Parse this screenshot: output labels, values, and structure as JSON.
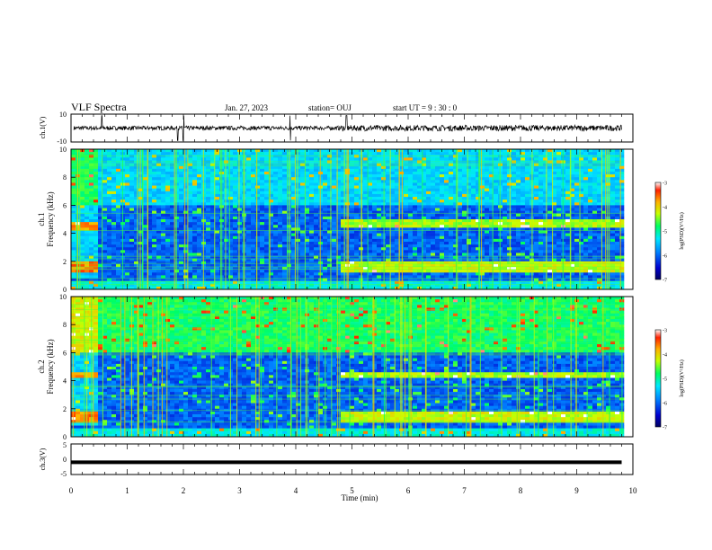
{
  "header": {
    "title": "VLF Spectra",
    "date": "Jan. 27, 2023",
    "station": "station= OUJ",
    "start": "start  UT =   9  : 30 : 0"
  },
  "chart_data": [
    {
      "type": "line",
      "panel": "ch1-waveform",
      "ylabel": "ch.1(V)",
      "xlim": [
        0,
        10
      ],
      "ylim": [
        -10,
        10
      ],
      "ytick_labels": [
        "10",
        "-10"
      ],
      "description_values": {
        "baseline": 0,
        "typical_amplitude": 1.5,
        "spike_times_min": [
          0.55,
          1.9,
          2.0,
          3.9,
          4.9
        ]
      }
    },
    {
      "type": "heatmap",
      "panel": "ch1-spectrogram",
      "ylabel": "ch.1\nFrequency  (kHz)",
      "xlim": [
        0,
        10
      ],
      "ylim": [
        0,
        10
      ],
      "ytick_labels": [
        "0",
        "2",
        "4",
        "6",
        "8",
        "10"
      ],
      "colorbar": {
        "label": "log(PSD)(V²/Hz)",
        "range": [
          -7,
          -3
        ],
        "tick_labels": [
          "-3",
          "-4",
          "-5",
          "-6",
          "-7"
        ]
      },
      "features": {
        "band_change_time_min": 4.8,
        "early_band_khz": [
          4.3,
          4.7
        ],
        "late_band_khz": [
          4.4,
          4.9
        ],
        "low_band_khz": [
          1.2,
          2.0
        ],
        "data_end_min": 9.8
      }
    },
    {
      "type": "heatmap",
      "panel": "ch2-spectrogram",
      "ylabel": "ch.2\nFrequency  (kHz)",
      "xlim": [
        0,
        10
      ],
      "ylim": [
        0,
        10
      ],
      "ytick_labels": [
        "0",
        "2",
        "4",
        "6",
        "8",
        "10"
      ],
      "colorbar": {
        "label": "log(PSD)(V²/Hz)",
        "range": [
          -7,
          -3
        ],
        "tick_labels": [
          "-3",
          "-4",
          "-5",
          "-6",
          "-7"
        ]
      },
      "features": {
        "band_change_time_min": 4.8,
        "early_band_khz": [
          4.2,
          4.6
        ],
        "late_band_khz": [
          4.2,
          4.6
        ],
        "low_band_khz": [
          1.0,
          1.8
        ],
        "data_end_min": 9.8
      }
    },
    {
      "type": "line",
      "panel": "ch3-waveform",
      "ylabel": "ch.3(V)",
      "xlabel": "Time  (min)",
      "xlim": [
        0,
        10
      ],
      "ylim": [
        -5,
        5
      ],
      "ytick_labels": [
        "5",
        "0",
        "-5"
      ],
      "xtick_labels": [
        "0",
        "1",
        "2",
        "3",
        "4",
        "5",
        "6",
        "7",
        "8",
        "9",
        "10"
      ],
      "description_values": {
        "level": -1,
        "data_end_min": 9.8
      }
    }
  ],
  "colors": {
    "background": "#00007a",
    "colormap": [
      "#000000",
      "#0000c8",
      "#0070ff",
      "#00e0ff",
      "#00ff70",
      "#c0ff00",
      "#ffe000",
      "#ff8000",
      "#ff2000",
      "#ffffff"
    ]
  }
}
